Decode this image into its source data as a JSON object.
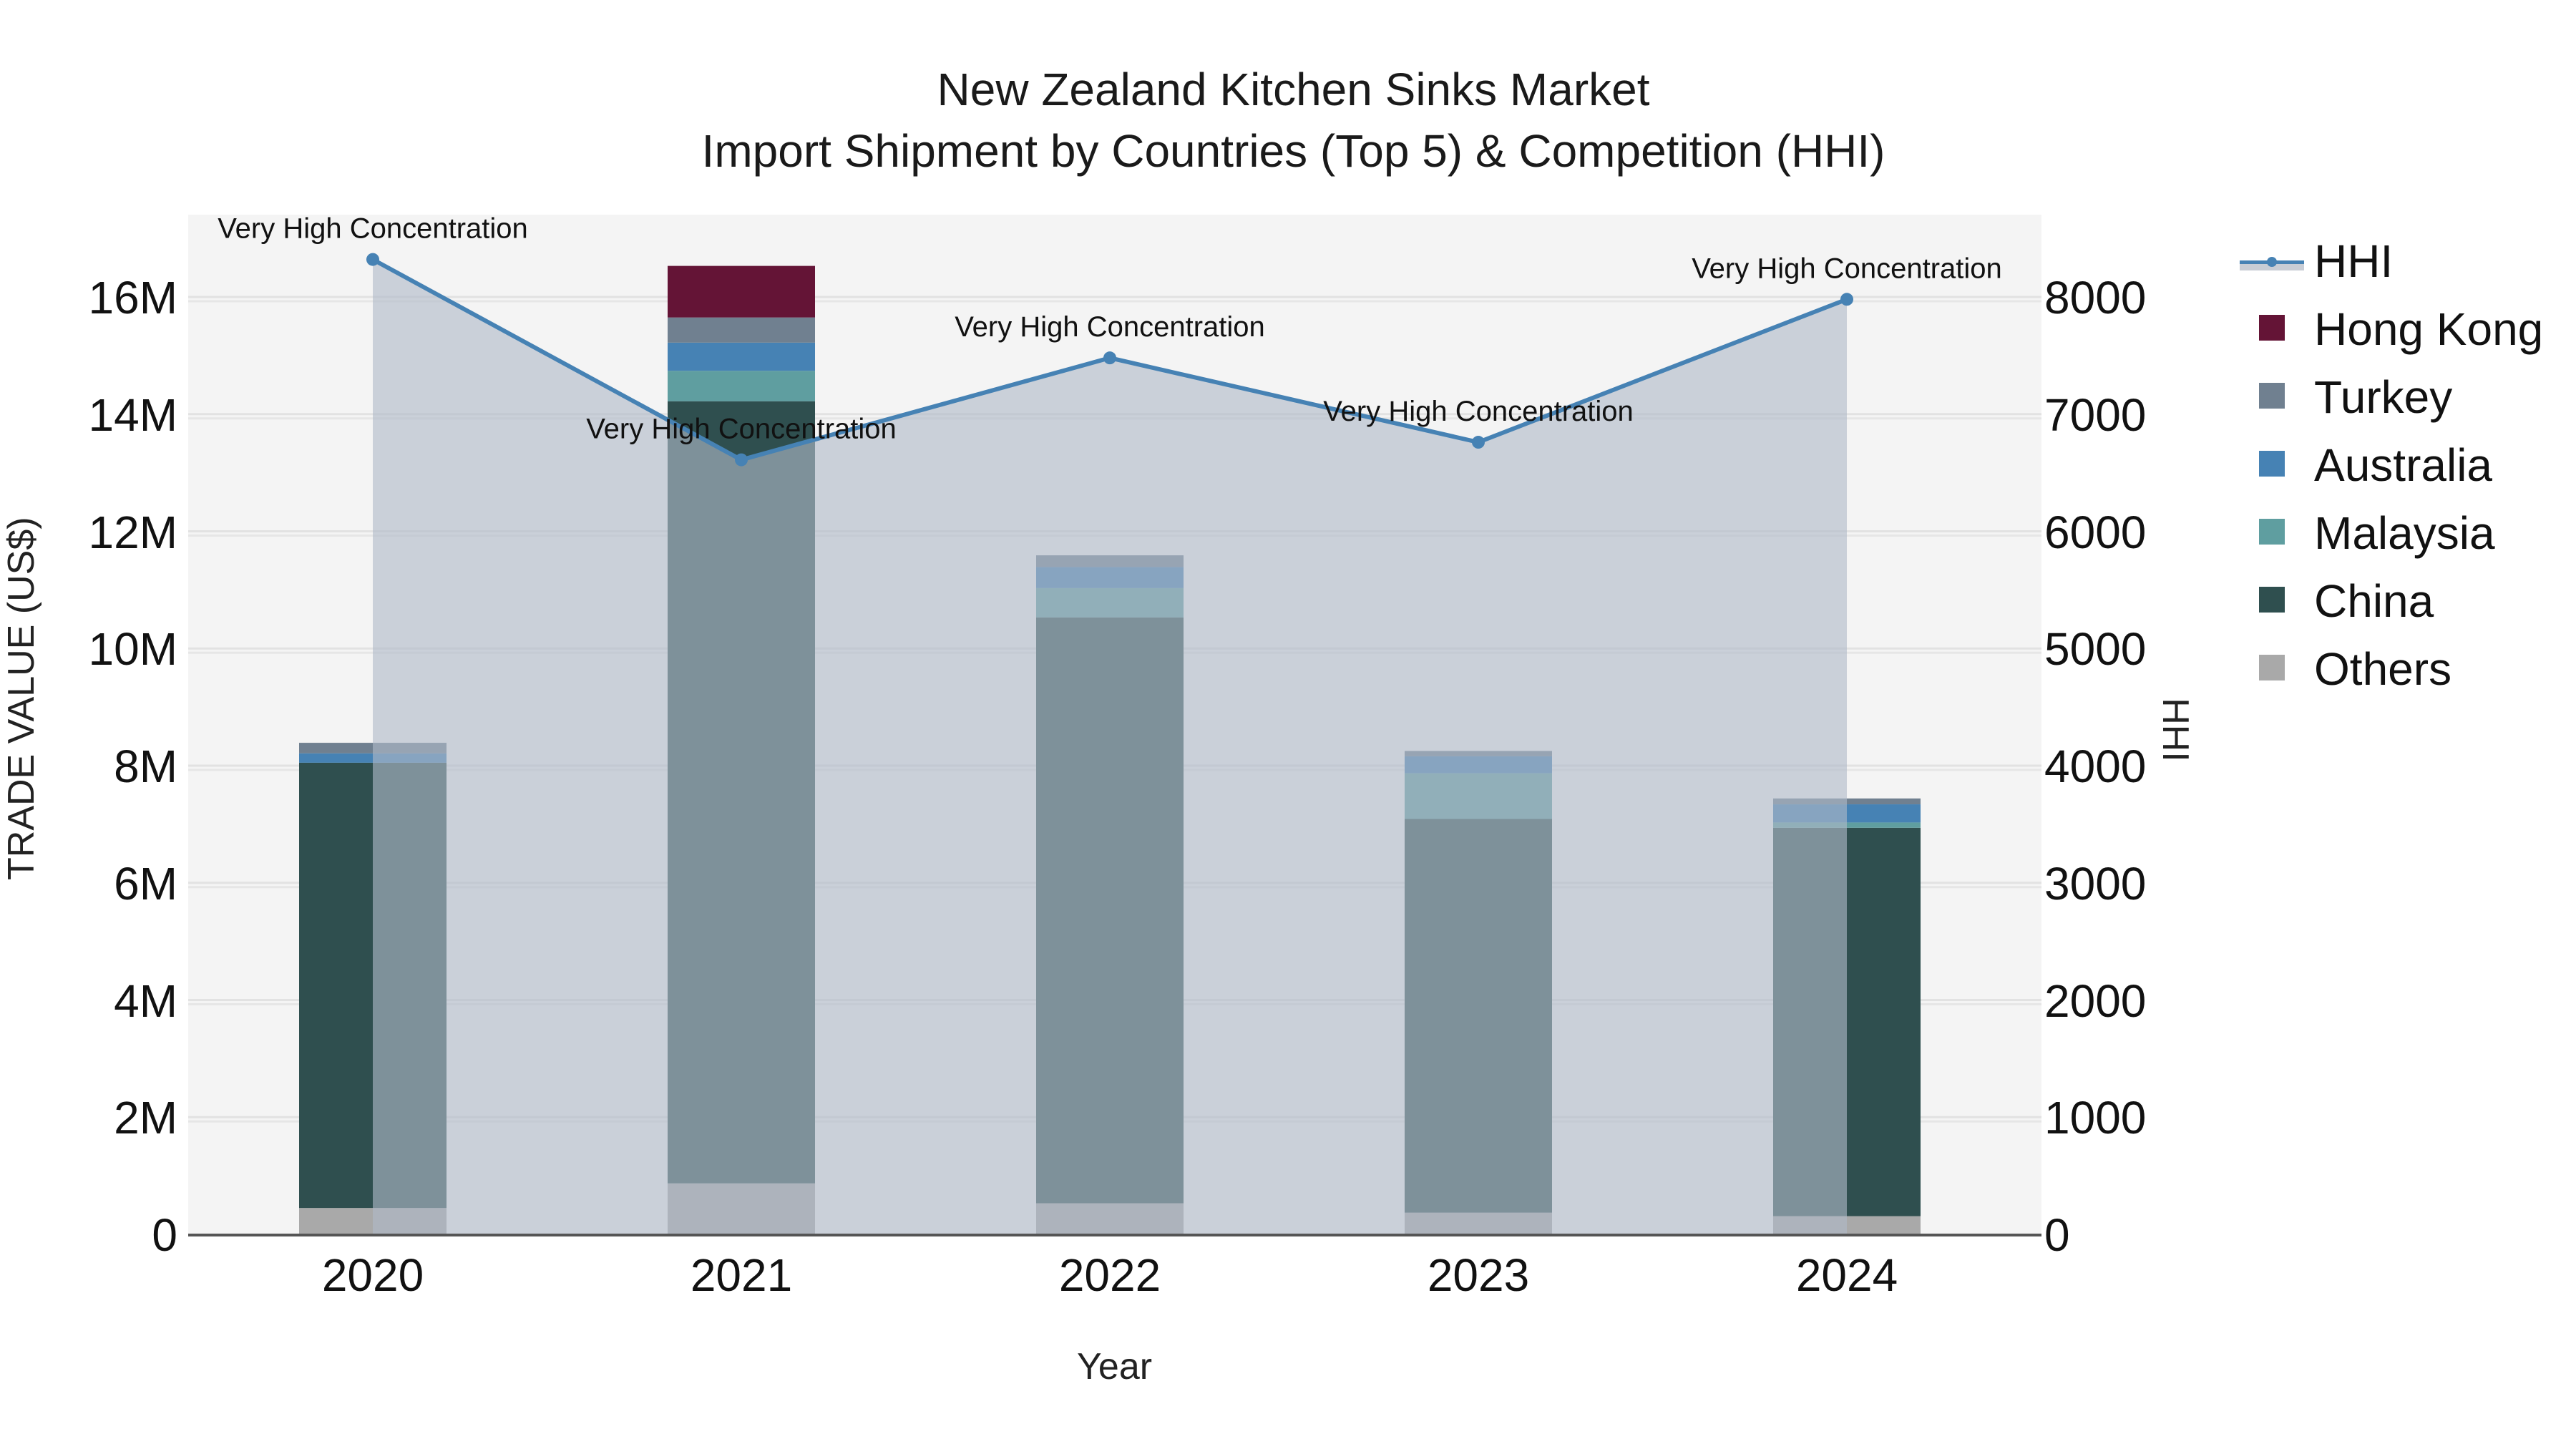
{
  "title_line1": "New Zealand Kitchen Sinks Market",
  "title_line2": "Import Shipment by Countries (Top 5) & Competition (HHI)",
  "axes": {
    "xlabel": "Year",
    "ylabel_left": "TRADE VALUE (US$)",
    "ylabel_right": "HHI",
    "left_ticks": [
      "0",
      "2M",
      "4M",
      "6M",
      "8M",
      "10M",
      "12M",
      "14M",
      "16M"
    ],
    "right_ticks": [
      "0",
      "1000",
      "2000",
      "3000",
      "4000",
      "5000",
      "6000",
      "7000",
      "8000"
    ]
  },
  "legend": [
    {
      "label": "HHI",
      "color": "#4682b4",
      "kind": "line"
    },
    {
      "label": "Hong Kong",
      "color": "#641436",
      "kind": "box"
    },
    {
      "label": "Turkey",
      "color": "#708090",
      "kind": "box"
    },
    {
      "label": "Australia",
      "color": "#4682b4",
      "kind": "box"
    },
    {
      "label": "Malaysia",
      "color": "#5f9ea0",
      "kind": "box"
    },
    {
      "label": "China",
      "color": "#2f4f4f",
      "kind": "box"
    },
    {
      "label": "Others",
      "color": "#a9a9a9",
      "kind": "box"
    }
  ],
  "chart_data": {
    "type": "bar",
    "stacked": true,
    "title": "New Zealand Kitchen Sinks Market — Import Shipment by Countries (Top 5) & Competition (HHI)",
    "xlabel": "Year",
    "ylabel": "TRADE VALUE (US$)",
    "y2label": "HHI",
    "ylim": [
      0,
      17400000
    ],
    "y2lim": [
      0,
      8700
    ],
    "categories": [
      "2020",
      "2021",
      "2022",
      "2023",
      "2024"
    ],
    "series": [
      {
        "name": "Others",
        "color": "#a9a9a9",
        "values": [
          450000,
          870000,
          530000,
          370000,
          310000
        ]
      },
      {
        "name": "China",
        "color": "#2f4f4f",
        "values": [
          7600000,
          13350000,
          10000000,
          6720000,
          6630000
        ]
      },
      {
        "name": "Malaysia",
        "color": "#5f9ea0",
        "values": [
          0,
          520000,
          500000,
          780000,
          90000
        ]
      },
      {
        "name": "Australia",
        "color": "#4682b4",
        "values": [
          160000,
          480000,
          360000,
          290000,
          310000
        ]
      },
      {
        "name": "Turkey",
        "color": "#708090",
        "values": [
          180000,
          430000,
          200000,
          90000,
          100000
        ]
      },
      {
        "name": "Hong Kong",
        "color": "#641436",
        "values": [
          0,
          880000,
          0,
          0,
          0
        ]
      }
    ],
    "line_series": {
      "name": "HHI",
      "axis": "right",
      "color": "#4682b4",
      "fill": "tozeroy",
      "values": [
        8320,
        6610,
        7480,
        6760,
        7980
      ]
    },
    "annotations": [
      "Very High Concentration",
      "Very High Concentration",
      "Very High Concentration",
      "Very High Concentration",
      "Very High Concentration"
    ],
    "grid": true,
    "legend_position": "right"
  }
}
